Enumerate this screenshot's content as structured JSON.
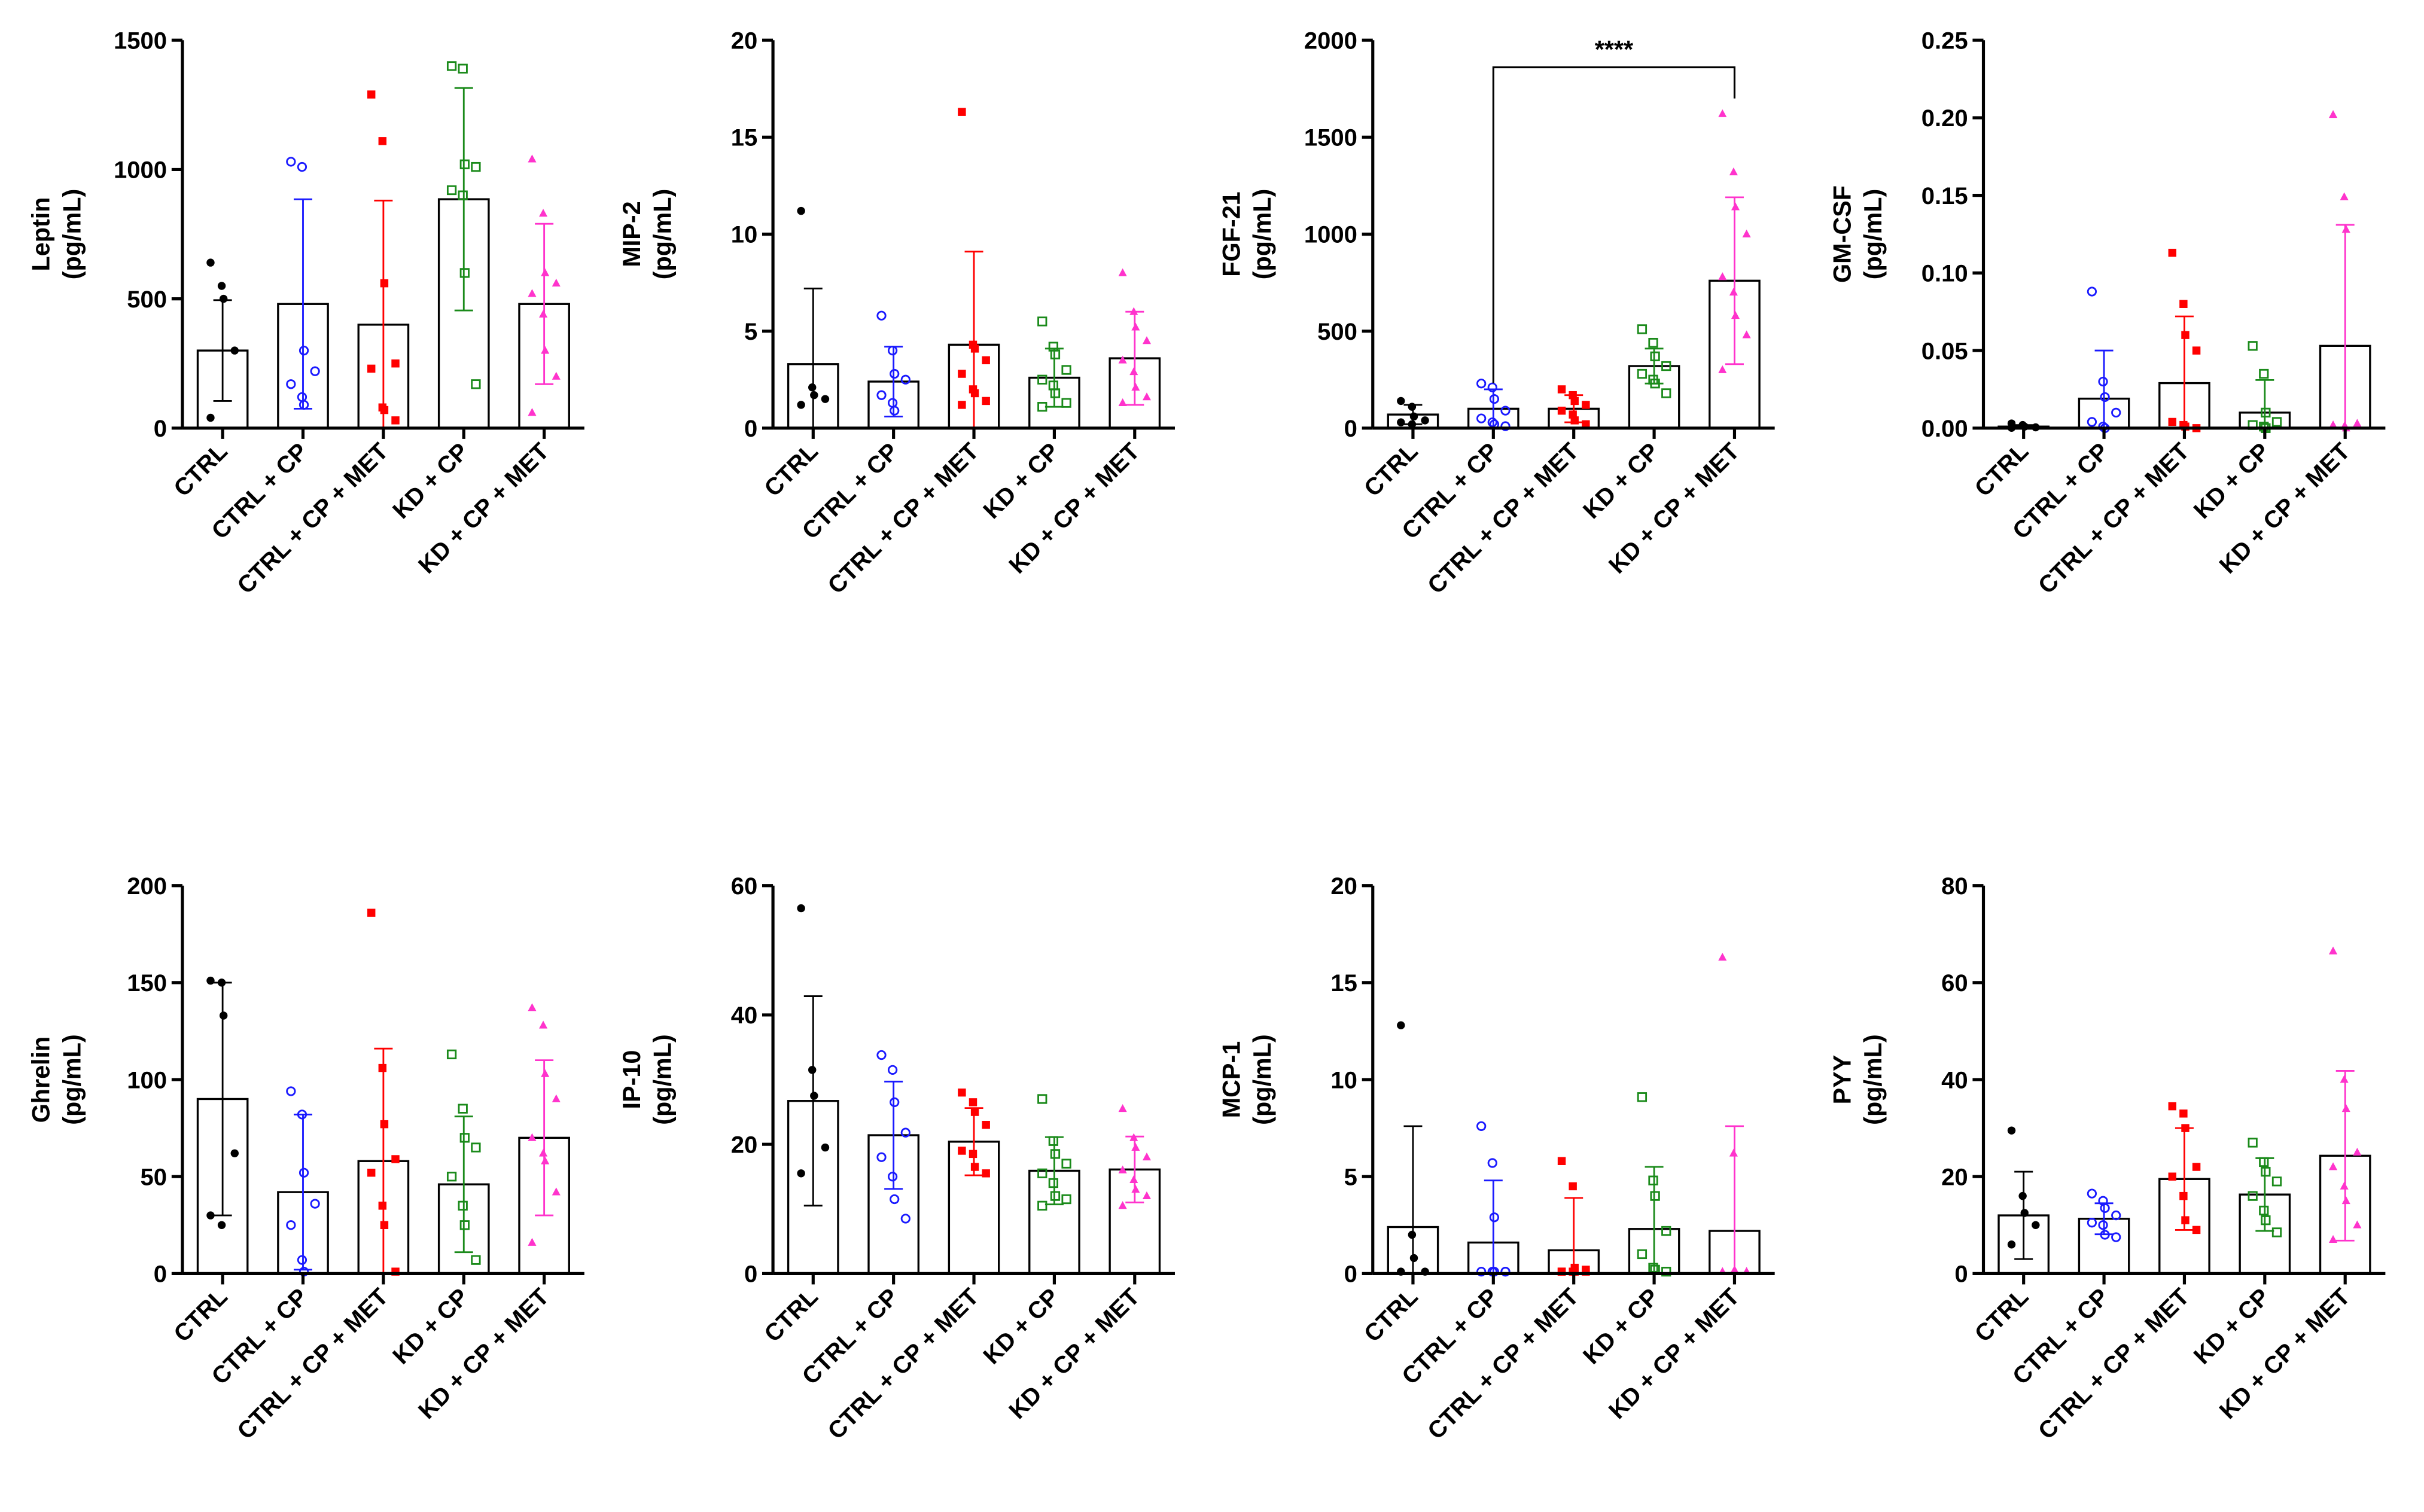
{
  "groups": [
    "CTRL",
    "CTRL + CP",
    "CTRL + CP + MET",
    "KD + CP",
    "KD + CP + MET"
  ],
  "group_colors": [
    "#000000",
    "#1a1aff",
    "#ff0000",
    "#1a8a1a",
    "#ff33cc"
  ],
  "group_markers": [
    "filled-circle",
    "open-circle",
    "filled-square",
    "open-square",
    "filled-triangle"
  ],
  "chart_data": [
    {
      "type": "bar",
      "ylabel_line1": "Leptin",
      "ylabel_line2": "(pg/mL)",
      "ylim": [
        0,
        1500
      ],
      "yticks": [
        0,
        500,
        1000,
        1500
      ],
      "yticklabels": [
        "0",
        "500",
        "1000",
        "1500"
      ],
      "means": [
        300,
        480,
        400,
        885,
        480
      ],
      "sds": [
        195,
        405,
        480,
        430,
        310
      ],
      "points": [
        [
          640,
          550,
          500,
          300,
          40
        ],
        [
          1030,
          1010,
          300,
          220,
          170,
          120,
          90
        ],
        [
          1290,
          1110,
          560,
          250,
          230,
          80,
          70,
          30
        ],
        [
          1400,
          1390,
          1020,
          1010,
          920,
          900,
          600,
          170
        ],
        [
          1040,
          830,
          600,
          560,
          520,
          440,
          300,
          200,
          60
        ]
      ],
      "annotation": null
    },
    {
      "type": "bar",
      "ylabel_line1": "MIP-2",
      "ylabel_line2": "(pg/mL)",
      "ylim": [
        0,
        20
      ],
      "yticks": [
        0,
        5,
        10,
        15,
        20
      ],
      "yticklabels": [
        "0",
        "5",
        "10",
        "15",
        "20"
      ],
      "means": [
        3.3,
        2.4,
        4.3,
        2.6,
        3.6
      ],
      "sds": [
        3.9,
        1.8,
        4.8,
        1.5,
        2.4
      ],
      "points": [
        [
          11.2,
          2.1,
          1.7,
          1.5,
          1.2
        ],
        [
          5.8,
          4.0,
          2.8,
          2.5,
          1.7,
          1.3,
          0.9
        ],
        [
          16.3,
          4.3,
          4.1,
          3.5,
          2.8,
          2.0,
          1.8,
          1.4,
          1.2
        ],
        [
          5.5,
          4.2,
          3.8,
          3.0,
          2.5,
          2.2,
          1.8,
          1.3,
          1.1
        ],
        [
          8.0,
          6.0,
          5.2,
          4.5,
          3.5,
          2.9,
          2.1,
          1.6,
          1.3
        ]
      ],
      "annotation": null
    },
    {
      "type": "bar",
      "ylabel_line1": "FGF-21",
      "ylabel_line2": "(pg/mL)",
      "ylim": [
        0,
        2000
      ],
      "yticks": [
        0,
        500,
        1000,
        1500,
        2000
      ],
      "yticklabels": [
        "0",
        "500",
        "1000",
        "1500",
        "2000"
      ],
      "means": [
        70,
        100,
        100,
        320,
        760
      ],
      "sds": [
        50,
        100,
        70,
        90,
        430
      ],
      "points": [
        [
          140,
          110,
          60,
          40,
          30,
          20
        ],
        [
          230,
          210,
          150,
          90,
          50,
          30,
          20,
          10
        ],
        [
          200,
          170,
          140,
          120,
          90,
          70,
          40,
          20
        ],
        [
          510,
          440,
          370,
          320,
          280,
          250,
          230,
          180
        ],
        [
          1620,
          1320,
          1140,
          1000,
          780,
          700,
          580,
          480,
          300
        ]
      ],
      "annotation": {
        "label": "****",
        "from_group": 1,
        "to_group": 4,
        "y_value": 1860
      }
    },
    {
      "type": "bar",
      "ylabel_line1": "GM-CSF",
      "ylabel_line2": "(pg/mL)",
      "ylim": [
        0,
        0.25
      ],
      "yticks": [
        0,
        0.05,
        0.1,
        0.15,
        0.2,
        0.25
      ],
      "yticklabels": [
        "0.00",
        "0.05",
        "0.10",
        "0.15",
        "0.20",
        "0.25"
      ],
      "means": [
        0.001,
        0.019,
        0.029,
        0.01,
        0.053
      ],
      "sds": [
        0.001,
        0.031,
        0.043,
        0.021,
        0.078
      ],
      "points": [
        [
          0.003,
          0.002,
          0.001,
          0.0005,
          0.0002
        ],
        [
          0.088,
          0.03,
          0.02,
          0.01,
          0.004,
          0.001,
          0.0
        ],
        [
          0.113,
          0.08,
          0.06,
          0.05,
          0.004,
          0.002,
          0.001,
          0.0
        ],
        [
          0.053,
          0.035,
          0.01,
          0.004,
          0.002,
          0.001,
          0.0
        ],
        [
          0.202,
          0.149,
          0.128,
          0.003,
          0.002,
          0.001,
          0.0
        ]
      ],
      "annotation": null
    },
    {
      "type": "bar",
      "ylabel_line1": "Ghrelin",
      "ylabel_line2": "(pg/mL)",
      "ylim": [
        0,
        200
      ],
      "yticks": [
        0,
        50,
        100,
        150,
        200
      ],
      "yticklabels": [
        "0",
        "50",
        "100",
        "150",
        "200"
      ],
      "means": [
        90,
        42,
        58,
        46,
        70
      ],
      "sds": [
        60,
        40,
        58,
        35,
        40
      ],
      "points": [
        [
          151,
          150,
          133,
          62,
          30,
          25
        ],
        [
          94,
          82,
          52,
          36,
          25,
          7,
          1
        ],
        [
          186,
          106,
          77,
          59,
          52,
          35,
          25,
          1
        ],
        [
          113,
          85,
          70,
          65,
          50,
          35,
          25,
          7
        ],
        [
          137,
          128,
          103,
          90,
          70,
          62,
          58,
          42,
          16
        ]
      ],
      "annotation": null
    },
    {
      "type": "bar",
      "ylabel_line1": "IP-10",
      "ylabel_line2": "(pg/mL)",
      "ylim": [
        0,
        60
      ],
      "yticks": [
        0,
        20,
        40,
        60
      ],
      "yticklabels": [
        "0",
        "20",
        "40",
        "60"
      ],
      "means": [
        26.7,
        21.4,
        20.4,
        15.9,
        16.1
      ],
      "sds": [
        16.2,
        8.3,
        5.2,
        5.2,
        5.1
      ],
      "points": [
        [
          56.5,
          31.5,
          27.5,
          19.5,
          15.5
        ],
        [
          33.8,
          31.5,
          26.5,
          21.8,
          18.0,
          15.0,
          11.5,
          8.5
        ],
        [
          28.0,
          26.5,
          25.0,
          23.0,
          19.0,
          18.5,
          16.5,
          15.5
        ],
        [
          27.0,
          20.5,
          18.5,
          17.0,
          15.5,
          14.0,
          12.0,
          11.5,
          10.5
        ],
        [
          25.5,
          21.0,
          19.5,
          18.0,
          16.0,
          14.5,
          13.0,
          12.0,
          10.5
        ]
      ],
      "annotation": null
    },
    {
      "type": "bar",
      "ylabel_line1": "MCP-1",
      "ylabel_line2": "(pg/mL)",
      "ylim": [
        0,
        20
      ],
      "yticks": [
        0,
        5,
        10,
        15,
        20
      ],
      "yticklabels": [
        "0",
        "5",
        "10",
        "15",
        "20"
      ],
      "means": [
        2.4,
        1.6,
        1.2,
        2.3,
        2.2
      ],
      "sds": [
        5.2,
        3.2,
        2.7,
        3.2,
        5.4
      ],
      "points": [
        [
          12.8,
          2.0,
          0.8,
          0.1,
          0.1
        ],
        [
          7.6,
          5.7,
          2.9,
          0.1,
          0.1,
          0.1,
          0.1,
          0.1
        ],
        [
          5.8,
          4.5,
          0.3,
          0.2,
          0.1,
          0.1,
          0.1,
          0.1,
          0.1
        ],
        [
          9.1,
          4.8,
          4.0,
          2.2,
          1.0,
          0.3,
          0.2,
          0.1
        ],
        [
          16.3,
          6.2,
          0.1,
          0.1,
          0.1,
          0.1,
          0.1,
          0.1
        ]
      ],
      "annotation": null
    },
    {
      "type": "bar",
      "ylabel_line1": "PYY",
      "ylabel_line2": "(pg/mL)",
      "ylim": [
        0,
        80
      ],
      "yticks": [
        0,
        20,
        40,
        60,
        80
      ],
      "yticklabels": [
        "0",
        "20",
        "40",
        "60",
        "80"
      ],
      "means": [
        12,
        11.3,
        19.5,
        16.3,
        24.3
      ],
      "sds": [
        9,
        3.2,
        10.5,
        7.5,
        17.5
      ],
      "points": [
        [
          29.5,
          16.0,
          12.5,
          10.0,
          6.0
        ],
        [
          16.5,
          15.0,
          13.5,
          12.0,
          10.5,
          10.0,
          8.0,
          7.5
        ],
        [
          34.5,
          33.0,
          30.0,
          22.0,
          20.0,
          16.0,
          11.0,
          9.0
        ],
        [
          27.0,
          23.0,
          21.0,
          19.0,
          16.0,
          13.0,
          11.0,
          8.5
        ],
        [
          66.5,
          40.0,
          34.0,
          25.0,
          22.0,
          18.0,
          15.0,
          10.0,
          7.0
        ]
      ],
      "annotation": null
    }
  ]
}
